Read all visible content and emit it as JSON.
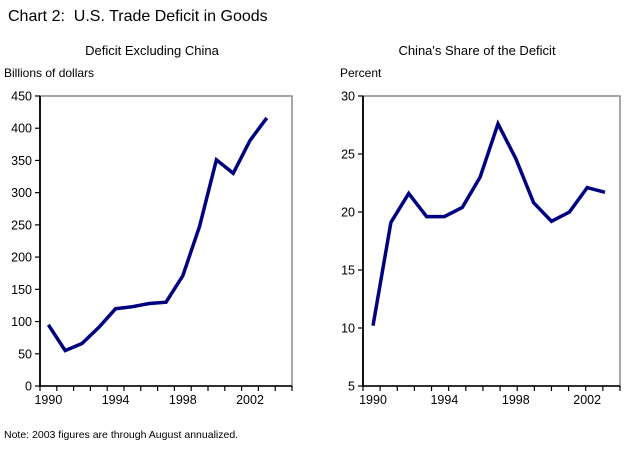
{
  "title": "Chart 2:  U.S. Trade Deficit in Goods",
  "note": "Note: 2003 figures are through August annualized.",
  "colors": {
    "line": "#000080",
    "plot_border": "#909090",
    "axis": "#000000",
    "text": "#000000",
    "background": "#ffffff"
  },
  "chart_data": [
    {
      "type": "line",
      "title": "Deficit Excluding China",
      "unit_label": "Billions of dollars",
      "x": [
        1990,
        1991,
        1992,
        1993,
        1994,
        1995,
        1996,
        1997,
        1998,
        1999,
        2000,
        2001,
        2002,
        2003
      ],
      "values": [
        95,
        55,
        66,
        91,
        120,
        123,
        128,
        130,
        171,
        248,
        351,
        330,
        381,
        416
      ],
      "ylim": [
        0,
        450
      ],
      "ytick_step": 50,
      "xtick_labels": [
        "1990",
        "1994",
        "1998",
        "2002"
      ],
      "grid": false,
      "legend": "none"
    },
    {
      "type": "line",
      "title": "China's Share of the Deficit",
      "unit_label": "Percent",
      "x": [
        1990,
        1991,
        1992,
        1993,
        1994,
        1995,
        1996,
        1997,
        1998,
        1999,
        2000,
        2001,
        2002,
        2003
      ],
      "values": [
        10.2,
        19.1,
        21.6,
        19.6,
        19.6,
        20.4,
        23.0,
        27.6,
        24.6,
        20.8,
        19.2,
        20.0,
        22.1,
        21.7
      ],
      "ylim": [
        5,
        30
      ],
      "ytick_step": 5,
      "xtick_labels": [
        "1990",
        "1994",
        "1998",
        "2002"
      ],
      "grid": false,
      "legend": "none"
    }
  ]
}
